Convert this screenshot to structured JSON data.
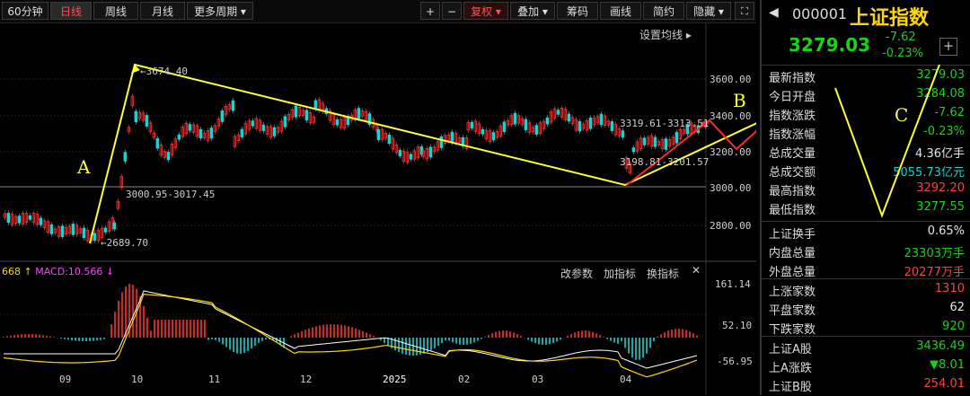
{
  "toolbar": {
    "periods": [
      "60分钟",
      "日线",
      "周线",
      "月线",
      "更多周期"
    ],
    "active_period": "日线",
    "right_buttons": [
      "+",
      "−",
      "复权",
      "叠加",
      "筹码",
      "画线",
      "简约",
      "隐藏"
    ],
    "settings_label": "设置均线"
  },
  "price_axis": [
    "3600.00",
    "3400.00",
    "3200.00",
    "3000.00",
    "2800.00"
  ],
  "macd_axis": [
    "161.14",
    "52.10",
    "-56.95"
  ],
  "chart_labels": {
    "high_label": "3674.40",
    "low_label": "2689.70",
    "gap_label": "3000.95-3017.45",
    "gap_label2": "3319.61-3313.51",
    "gap_label3": "3198.81-3201.57"
  },
  "macd_panel": {
    "indicator_prefix": "668",
    "indicator_text": "MACD:10.566",
    "buttons": [
      "改参数",
      "加指标",
      "换指标"
    ]
  },
  "x_axis_labels": [
    "09",
    "10",
    "11",
    "12",
    "2025",
    "02",
    "03",
    "04"
  ],
  "annotations": {
    "a": "A",
    "b": "B",
    "c": "C"
  },
  "quote": {
    "code": "000001",
    "name": "上证指数",
    "price": "3279.03",
    "change": "-7.62",
    "change_pct": "-0.23%"
  },
  "stats": [
    {
      "k": "最新指数",
      "v": "3279.03",
      "c": "#19d219"
    },
    {
      "k": "今日开盘",
      "v": "3284.08",
      "c": "#19d219"
    },
    {
      "k": "指数涨跌",
      "v": "-7.62",
      "c": "#19d219"
    },
    {
      "k": "指数涨幅",
      "v": "-0.23%",
      "c": "#19d219"
    },
    {
      "k": "总成交量",
      "v": "4.36亿手",
      "c": "#e6e6e6"
    },
    {
      "k": "总成交额",
      "v": "5055.73亿元",
      "c": "#19d2d2"
    },
    {
      "k": "最高指数",
      "v": "3292.20",
      "c": "#ff4040"
    },
    {
      "k": "最低指数",
      "v": "3277.55",
      "c": "#19d219"
    }
  ],
  "stats2": [
    {
      "k": "上证换手",
      "v": "0.65%",
      "c": "#e6e6e6"
    },
    {
      "k": "内盘总量",
      "v": "23303万手",
      "c": "#19d219"
    },
    {
      "k": "外盘总量",
      "v": "20277万手",
      "c": "#ff4040"
    }
  ],
  "stats3": [
    {
      "k": "上涨家数",
      "v": "1310",
      "c": "#ff4040"
    },
    {
      "k": "平盘家数",
      "v": "62",
      "c": "#e6e6e6"
    },
    {
      "k": "下跌家数",
      "v": "920",
      "c": "#19d219"
    }
  ],
  "stats4": [
    {
      "k": "上证A股",
      "v": "3436.49",
      "c": "#19d219"
    },
    {
      "k": "上A涨跌",
      "v": "▼8.01",
      "c": "#19d219"
    },
    {
      "k": "上证B股",
      "v": "254.01",
      "c": "#ff4040"
    }
  ],
  "colors": {
    "up": "#ff3030",
    "down": "#1ad2d2",
    "yellow": "#ffff33",
    "red_arrow": "#ff2a2a"
  }
}
